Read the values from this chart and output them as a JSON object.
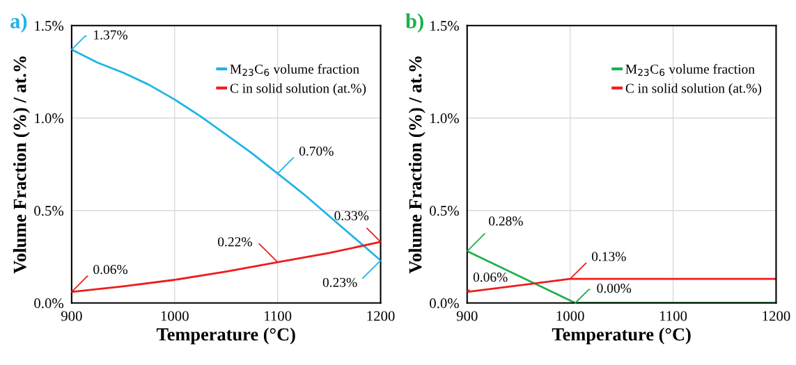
{
  "chart_data": [
    {
      "type": "line",
      "title": "a)",
      "xlabel": "Temperature (°C)",
      "ylabel": "Volume Fraction (%) / at.%",
      "x": [
        900,
        925,
        950,
        975,
        1000,
        1025,
        1050,
        1075,
        1100,
        1125,
        1150,
        1175,
        1200
      ],
      "series": [
        {
          "name": "M$_{23}$C$_{6}$ volume fraction",
          "color": "#1fb4e6",
          "values": [
            1.37,
            1.3,
            1.245,
            1.18,
            1.1,
            1.01,
            0.91,
            0.81,
            0.7,
            0.59,
            0.47,
            0.35,
            0.23
          ]
        },
        {
          "name": "C in solid solution (at.%)",
          "color": "#ee1c1c",
          "x": [
            900,
            950,
            1000,
            1050,
            1100,
            1150,
            1200
          ],
          "values": [
            0.06,
            0.09,
            0.125,
            0.17,
            0.22,
            0.27,
            0.33
          ]
        }
      ],
      "xlim": [
        900,
        1200
      ],
      "xticks": [
        900,
        1000,
        1100,
        1200
      ],
      "ylim": [
        0,
        1.5
      ],
      "yticks": [
        {
          "value": 0,
          "label": "0.0%"
        },
        {
          "value": 0.5,
          "label": "0.5%"
        },
        {
          "value": 1.0,
          "label": "1.0%"
        },
        {
          "value": 1.5,
          "label": "1.5%"
        }
      ],
      "grid": true,
      "legend": "top right",
      "annotations": [
        {
          "text": "1.37%",
          "x": 900,
          "y": 1.37
        },
        {
          "text": "0.70%",
          "x": 1100,
          "y": 0.7
        },
        {
          "text": "0.33%",
          "x": 1200,
          "y": 0.33
        },
        {
          "text": "0.23%",
          "x": 1200,
          "y": 0.23
        },
        {
          "text": "0.22%",
          "x": 1100,
          "y": 0.22
        },
        {
          "text": "0.06%",
          "x": 900,
          "y": 0.06
        }
      ]
    },
    {
      "type": "line",
      "title": "b)",
      "xlabel": "Temperature (°C)",
      "ylabel": "Volume Fraction (%) / at.%",
      "series": [
        {
          "name": "M$_{23}$C$_{6}$ volume fraction",
          "color": "#1db04b",
          "x": [
            900,
            1005,
            1200
          ],
          "values": [
            0.28,
            0.0,
            0.0
          ]
        },
        {
          "name": "C in solid solution (at.%)",
          "color": "#ee1c1c",
          "x": [
            900,
            1000,
            1100,
            1200
          ],
          "values": [
            0.06,
            0.13,
            0.13,
            0.13
          ]
        }
      ],
      "xlim": [
        900,
        1200
      ],
      "xticks": [
        900,
        1000,
        1100,
        1200
      ],
      "ylim": [
        0,
        1.5
      ],
      "yticks": [
        {
          "value": 0,
          "label": "0.0%"
        },
        {
          "value": 0.5,
          "label": "0.5%"
        },
        {
          "value": 1.0,
          "label": "1.0%"
        },
        {
          "value": 1.5,
          "label": "1.5%"
        }
      ],
      "grid": true,
      "legend": "top right",
      "annotations": [
        {
          "text": "0.28%",
          "x": 900,
          "y": 0.28
        },
        {
          "text": "0.13%",
          "x": 1000,
          "y": 0.13
        },
        {
          "text": "0.06%",
          "x": 900,
          "y": 0.06
        },
        {
          "text": "0.00%",
          "x": 1005,
          "y": 0.0
        }
      ]
    }
  ]
}
